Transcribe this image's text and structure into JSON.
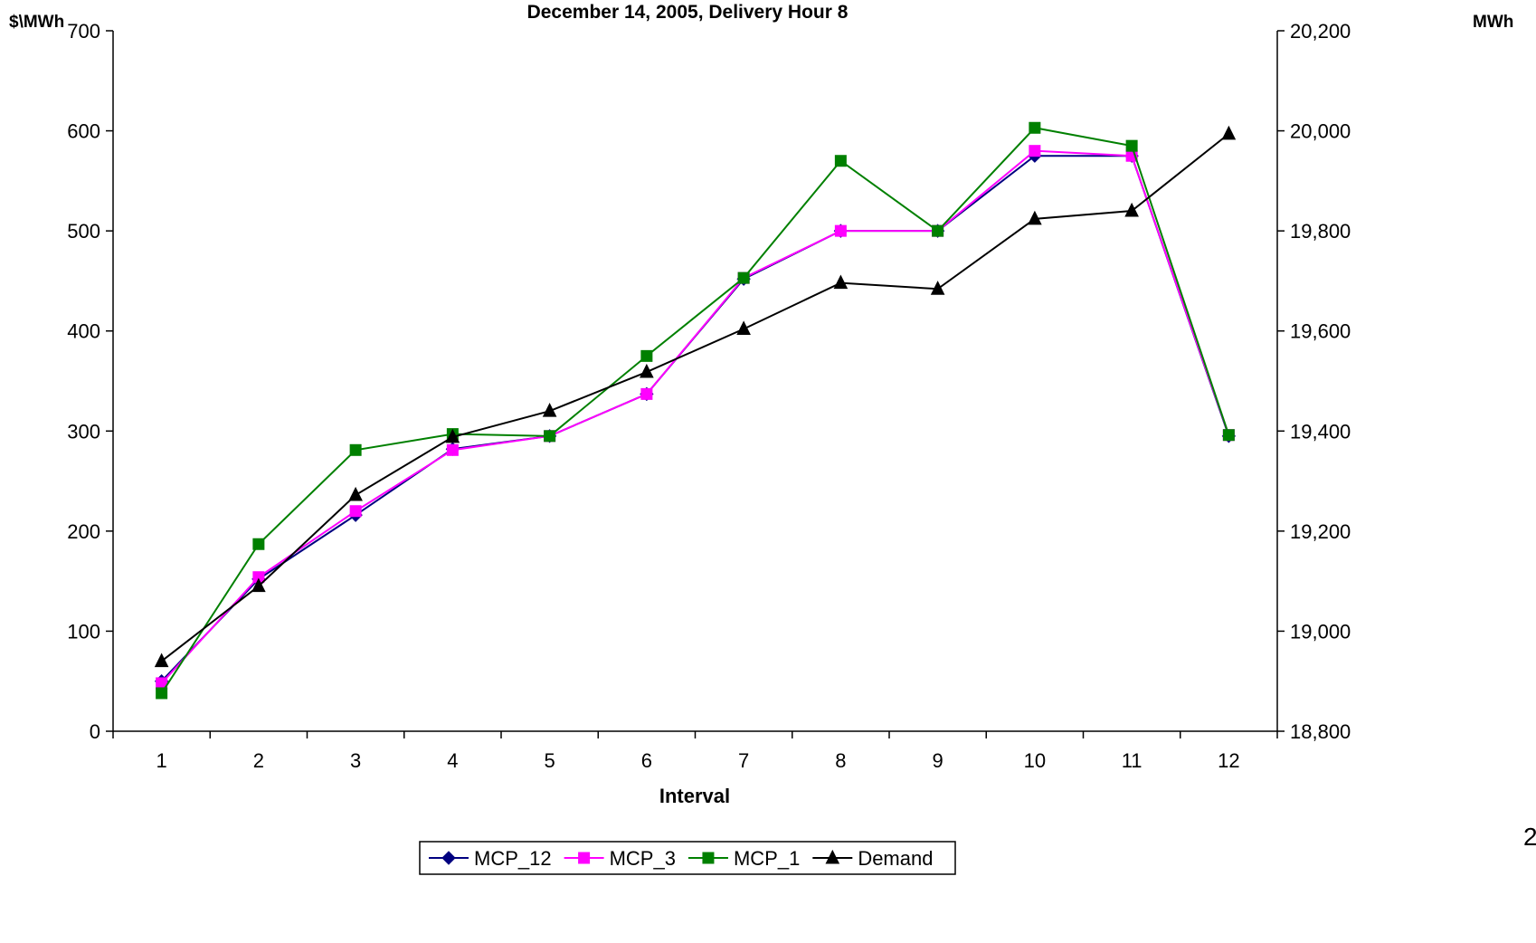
{
  "page_number": "2",
  "chart_data": {
    "type": "line",
    "title": "December 14, 2005, Delivery Hour 8",
    "xlabel": "Interval",
    "ylabel": "$\\MWh",
    "y2label": "MWh",
    "categories": [
      "1",
      "2",
      "3",
      "4",
      "5",
      "6",
      "7",
      "8",
      "9",
      "10",
      "11",
      "12"
    ],
    "ylim": [
      0,
      700
    ],
    "yticks": [
      "0",
      "100",
      "200",
      "300",
      "400",
      "500",
      "600",
      "700"
    ],
    "y2lim": [
      18800,
      20200
    ],
    "y2ticks": [
      "18,800",
      "19,000",
      "19,200",
      "19,400",
      "19,600",
      "19,800",
      "20,000",
      "20,200"
    ],
    "grid": false,
    "legend_position": "bottom",
    "series": [
      {
        "name": "MCP_12",
        "axis": "left",
        "color": "#000080",
        "marker": "diamond",
        "values": [
          50,
          152,
          216,
          282,
          295,
          337,
          452,
          500,
          500,
          575,
          575,
          295
        ]
      },
      {
        "name": "MCP_3",
        "axis": "left",
        "color": "#FF00FF",
        "marker": "square",
        "values": [
          48,
          154,
          220,
          281,
          295,
          337,
          453,
          500,
          500,
          580,
          575,
          296
        ]
      },
      {
        "name": "MCP_1",
        "axis": "left",
        "color": "#008000",
        "marker": "square",
        "values": [
          38,
          187,
          281,
          297,
          295,
          375,
          453,
          570,
          500,
          603,
          585,
          296
        ]
      },
      {
        "name": "Demand",
        "axis": "right",
        "color": "#000000",
        "marker": "triangle",
        "values": [
          18940,
          19090,
          19272,
          19388,
          19440,
          19518,
          19604,
          19696,
          19684,
          19824,
          19840,
          19994
        ]
      }
    ]
  }
}
